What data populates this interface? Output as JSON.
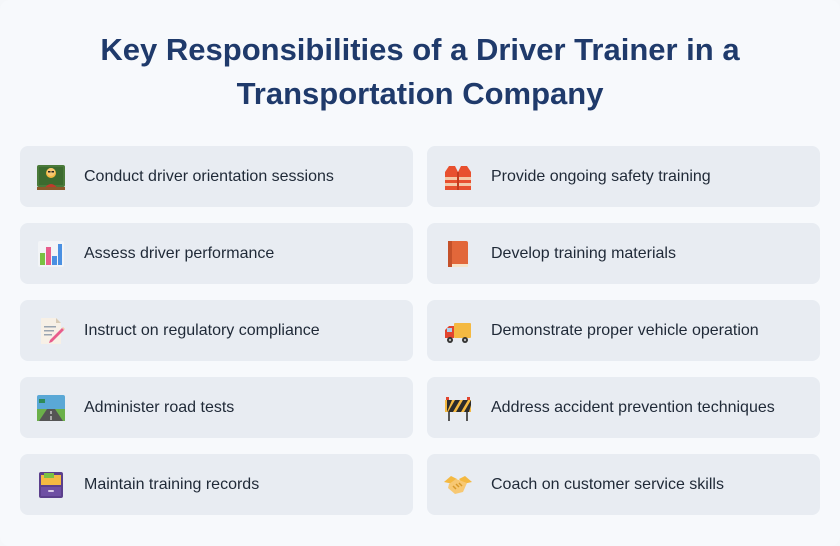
{
  "title_line1": "Key Responsibilities of a Driver Trainer in a",
  "title_line2": "Transportation Company",
  "colors": {
    "title": "#1f3a6b",
    "card_background": "#e8ecf2",
    "page_background": "#f7f9fc"
  },
  "items": [
    {
      "label": "Conduct driver orientation sessions",
      "icon": "teacher-icon"
    },
    {
      "label": "Provide ongoing safety training",
      "icon": "safety-vest-icon"
    },
    {
      "label": "Assess driver performance",
      "icon": "bar-chart-icon"
    },
    {
      "label": "Develop training materials",
      "icon": "book-icon"
    },
    {
      "label": "Instruct on regulatory compliance",
      "icon": "memo-icon"
    },
    {
      "label": "Demonstrate proper vehicle operation",
      "icon": "delivery-truck-icon"
    },
    {
      "label": "Administer road tests",
      "icon": "motorway-icon"
    },
    {
      "label": "Address accident prevention techniques",
      "icon": "construction-barrier-icon"
    },
    {
      "label": "Maintain training records",
      "icon": "file-cabinet-icon"
    },
    {
      "label": "Coach on customer service skills",
      "icon": "handshake-icon"
    }
  ]
}
